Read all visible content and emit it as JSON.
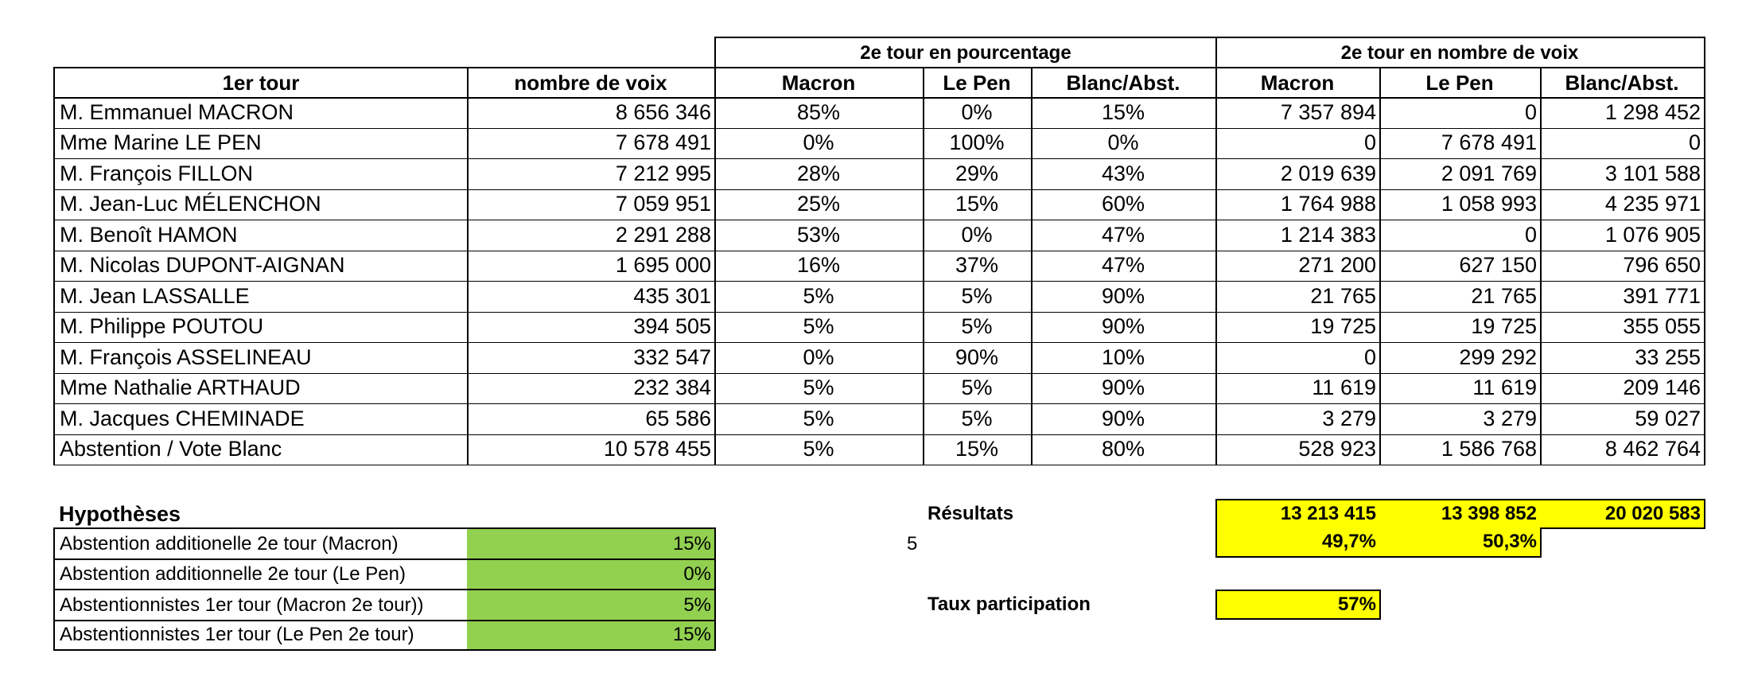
{
  "header": {
    "group_pct": "2e tour en pourcentage",
    "group_votes": "2e tour en nombre de voix",
    "col_first_round": "1er tour",
    "col_votes": "nombre de voix",
    "col_macron": "Macron",
    "col_lepen": "Le Pen",
    "col_blanc": "Blanc/Abst."
  },
  "rows": [
    {
      "name": "M. Emmanuel MACRON",
      "votes": "8 656 346",
      "pm": "85%",
      "pl": "0%",
      "pb": "15%",
      "vm": "7 357 894",
      "vl": "0",
      "vb": "1 298 452"
    },
    {
      "name": "Mme Marine LE PEN",
      "votes": "7 678 491",
      "pm": "0%",
      "pl": "100%",
      "pb": "0%",
      "vm": "0",
      "vl": "7 678 491",
      "vb": "0"
    },
    {
      "name": "M. François FILLON",
      "votes": "7 212 995",
      "pm": "28%",
      "pl": "29%",
      "pb": "43%",
      "vm": "2 019 639",
      "vl": "2 091 769",
      "vb": "3 101 588"
    },
    {
      "name": "M. Jean-Luc MÉLENCHON",
      "votes": "7 059 951",
      "pm": "25%",
      "pl": "15%",
      "pb": "60%",
      "vm": "1 764 988",
      "vl": "1 058 993",
      "vb": "4 235 971"
    },
    {
      "name": "M. Benoît HAMON",
      "votes": "2 291 288",
      "pm": "53%",
      "pl": "0%",
      "pb": "47%",
      "vm": "1 214 383",
      "vl": "0",
      "vb": "1 076 905"
    },
    {
      "name": "M. Nicolas DUPONT-AIGNAN",
      "votes": "1 695 000",
      "pm": "16%",
      "pl": "37%",
      "pb": "47%",
      "vm": "271 200",
      "vl": "627 150",
      "vb": "796 650"
    },
    {
      "name": "M. Jean LASSALLE",
      "votes": "435 301",
      "pm": "5%",
      "pl": "5%",
      "pb": "90%",
      "vm": "21 765",
      "vl": "21 765",
      "vb": "391 771"
    },
    {
      "name": "M. Philippe POUTOU",
      "votes": "394 505",
      "pm": "5%",
      "pl": "5%",
      "pb": "90%",
      "vm": "19 725",
      "vl": "19 725",
      "vb": "355 055"
    },
    {
      "name": "M. François ASSELINEAU",
      "votes": "332 547",
      "pm": "0%",
      "pl": "90%",
      "pb": "10%",
      "vm": "0",
      "vl": "299 292",
      "vb": "33 255"
    },
    {
      "name": "Mme Nathalie ARTHAUD",
      "votes": "232 384",
      "pm": "5%",
      "pl": "5%",
      "pb": "90%",
      "vm": "11 619",
      "vl": "11 619",
      "vb": "209 146"
    },
    {
      "name": "M. Jacques CHEMINADE",
      "votes": "65 586",
      "pm": "5%",
      "pl": "5%",
      "pb": "90%",
      "vm": "3 279",
      "vl": "3 279",
      "vb": "59 027"
    },
    {
      "name": "Abstention / Vote Blanc",
      "votes": "10 578 455",
      "pm": "5%",
      "pl": "15%",
      "pb": "80%",
      "vm": "528 923",
      "vl": "1 586 768",
      "vb": "8 462 764"
    }
  ],
  "hypotheses": {
    "title": "Hypothèses",
    "items": [
      {
        "label": "Abstention additionelle 2e tour (Macron)",
        "value": "15%"
      },
      {
        "label": "Abstention additionnelle 2e tour (Le Pen)",
        "value": "0%"
      },
      {
        "label": "Abstentionnistes 1er tour (Macron 2e tour))",
        "value": "5%"
      },
      {
        "label": "Abstentionnistes 1er tour (Le Pen 2e tour)",
        "value": "15%"
      }
    ]
  },
  "results": {
    "label": "Résultats",
    "stray_value": "5",
    "total_macron": "13 213 415",
    "total_lepen": "13 398 852",
    "total_blanc": "20 020 583",
    "pct_macron": "49,7%",
    "pct_lepen": "50,3%",
    "participation_label": "Taux participation",
    "participation_value": "57%"
  },
  "colors": {
    "highlight": "#ffff00",
    "hypothesis_fill": "#92d050",
    "grid": "#000000"
  }
}
